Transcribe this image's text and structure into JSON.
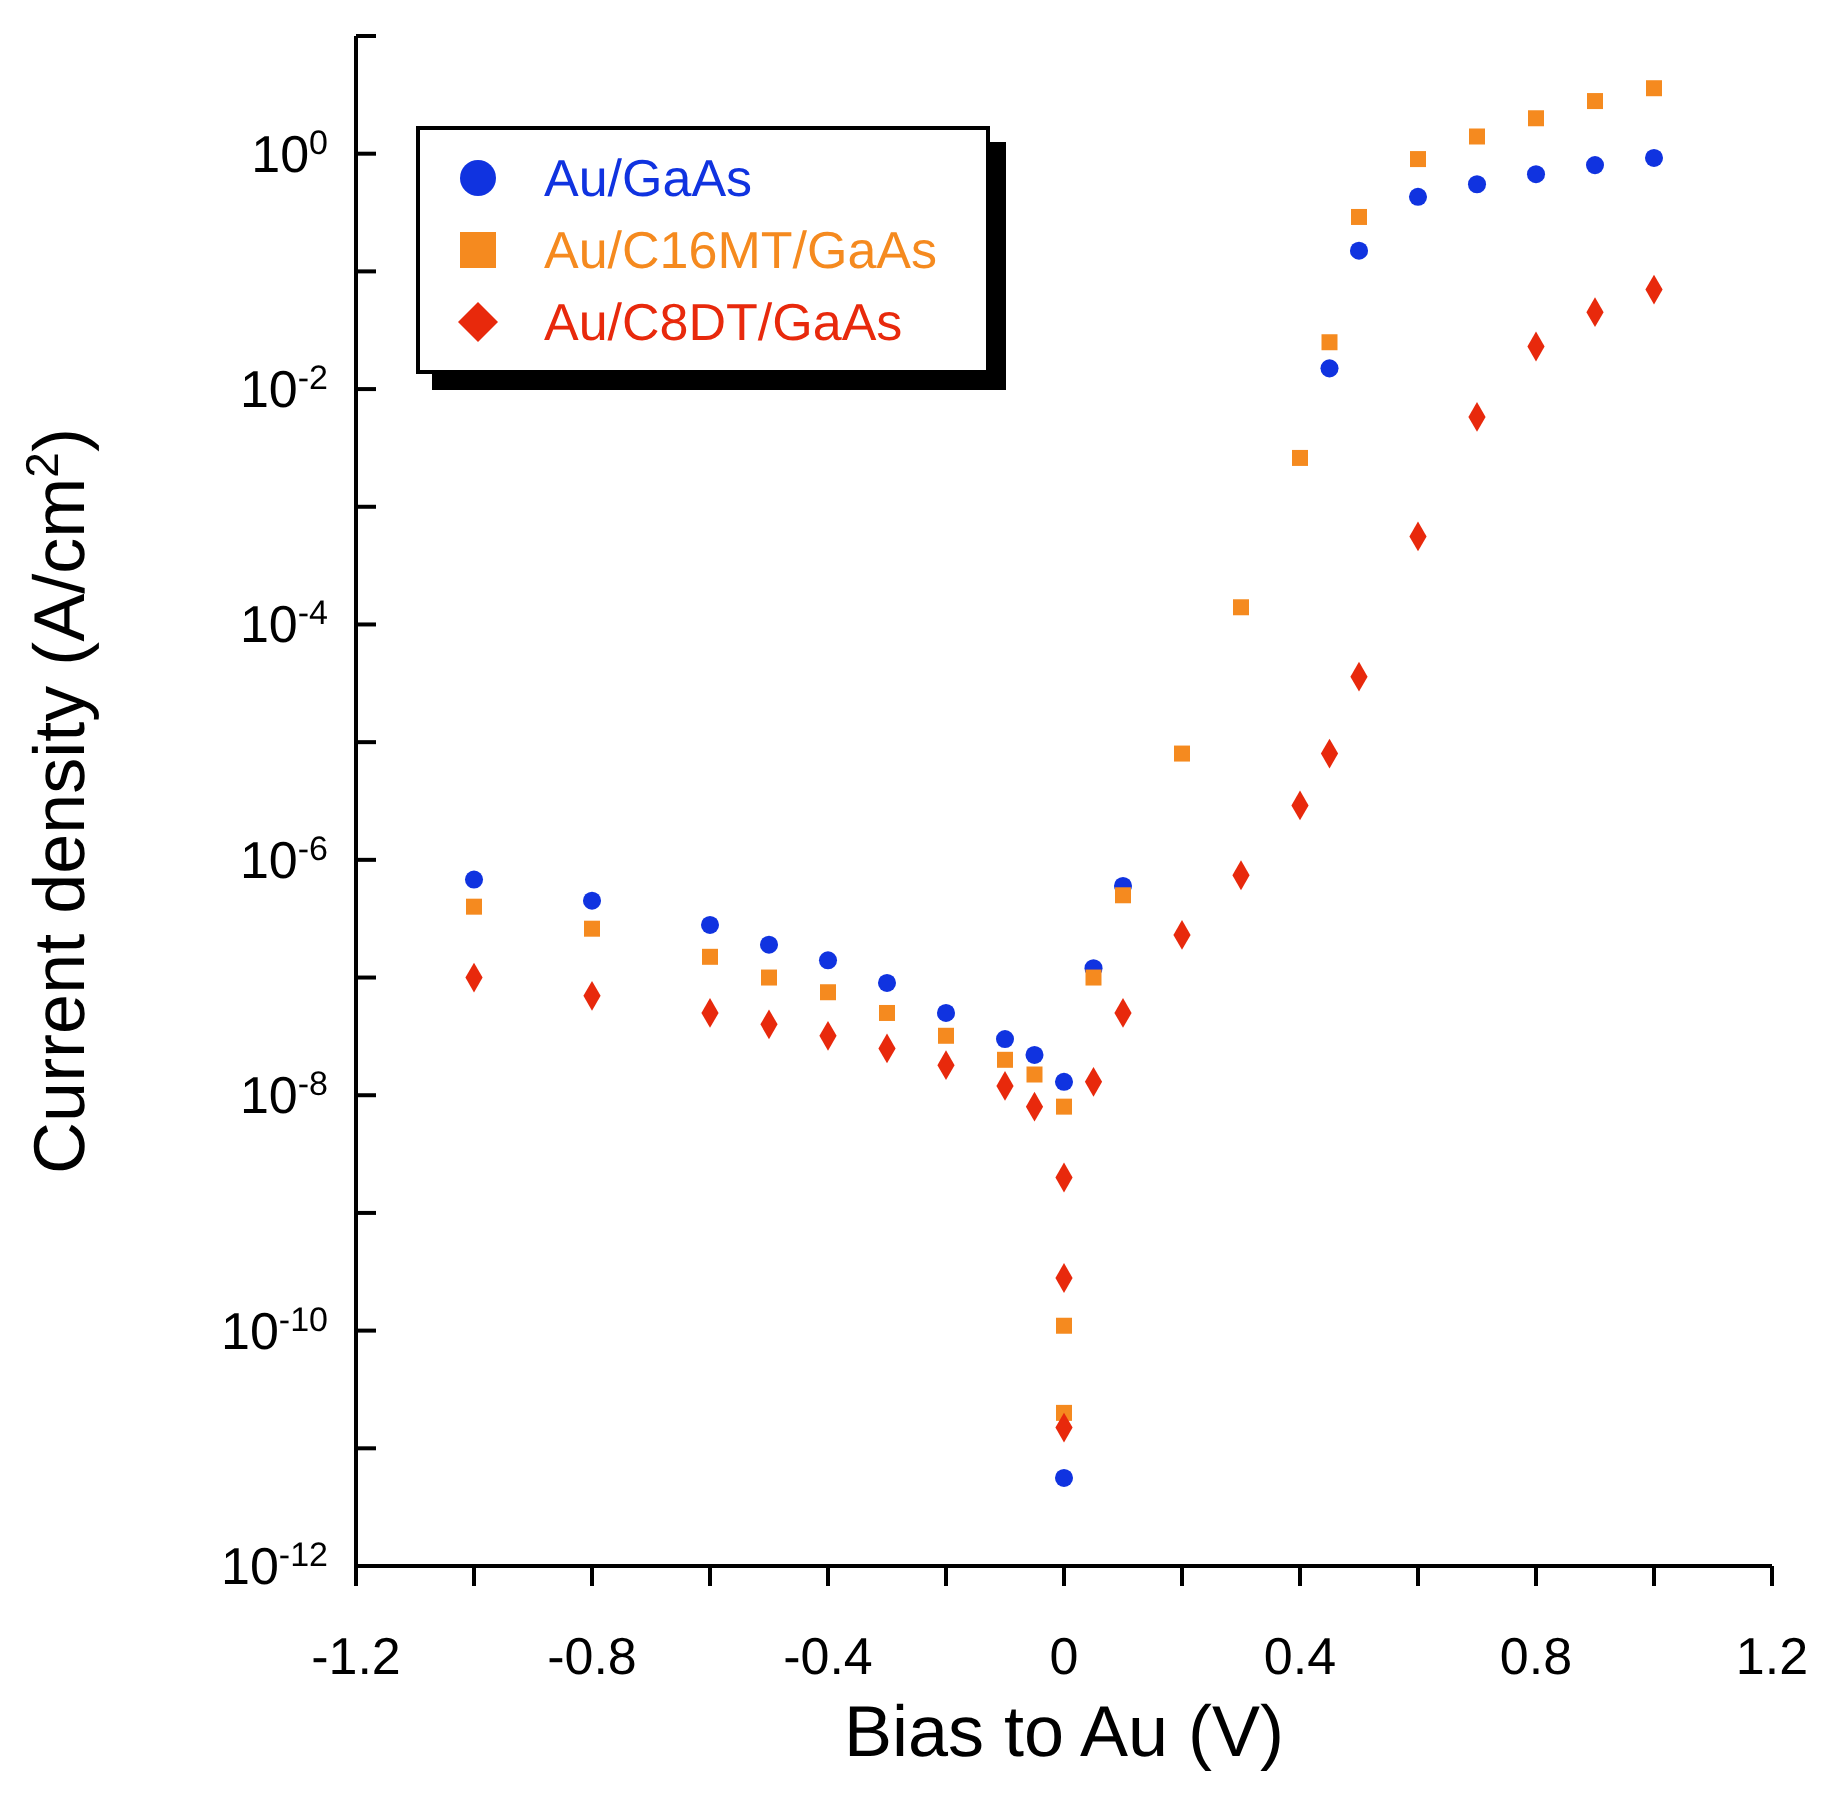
{
  "chart_data": {
    "type": "scatter",
    "xlabel": "Bias to Au (V)",
    "ylabel": "Current density (A/cm$^{2}$)",
    "log": "y",
    "legend": "top left",
    "grid": false,
    "xlim": [
      -1.2,
      1.2
    ],
    "xticks": [
      -1.2,
      {
        "value": -1.0,
        "label": null
      },
      -0.8,
      {
        "value": -0.6,
        "label": null
      },
      -0.4,
      {
        "value": -0.2,
        "label": null
      },
      0,
      {
        "value": 0.2,
        "label": null
      },
      0.4,
      {
        "value": 0.6,
        "label": null
      },
      0.8,
      {
        "value": 1.0,
        "label": null
      },
      1.2
    ],
    "ylim": [
      1e-12,
      10
    ],
    "yticks": [
      {
        "value": 1e-12,
        "label": "10$^{-12}$"
      },
      {
        "value": 1e-11,
        "label": null
      },
      {
        "value": 1e-10,
        "label": "10$^{-10}$"
      },
      {
        "value": 1e-09,
        "label": null
      },
      {
        "value": 1e-08,
        "label": "10$^{-8}$"
      },
      {
        "value": 1e-07,
        "label": null
      },
      {
        "value": 1e-06,
        "label": "10$^{-6}$"
      },
      {
        "value": 1e-05,
        "label": null
      },
      {
        "value": 0.0001,
        "label": "10$^{-4}$"
      },
      {
        "value": 0.001,
        "label": null
      },
      {
        "value": 0.01,
        "label": "10$^{-2}$"
      },
      {
        "value": 0.1,
        "label": null
      },
      {
        "value": 1,
        "label": "10$^{0}$"
      },
      {
        "value": 10,
        "label": null
      }
    ],
    "series": [
      {
        "name": "Au/GaAs",
        "color": "#1033e0",
        "marker": "circle",
        "x": [
          -1,
          -0.8,
          -0.6,
          -0.5,
          -0.4,
          -0.3,
          -0.2,
          -0.1,
          -0.05,
          0,
          0,
          0.05,
          0.1,
          0.45,
          0.5,
          0.6,
          0.7,
          0.8,
          0.9,
          1
        ],
        "values": [
          6.8e-07,
          4.5e-07,
          2.8e-07,
          1.9e-07,
          1.4e-07,
          9e-08,
          5e-08,
          3e-08,
          2.2e-08,
          1.3e-08,
          5.6e-12,
          1.2e-07,
          6e-07,
          0.015,
          0.15,
          0.43,
          0.55,
          0.67,
          0.8,
          0.92
        ]
      },
      {
        "name": "Au/C16MT/GaAs",
        "color": "#f58a1f",
        "marker": "square",
        "x": [
          -1,
          -0.8,
          -0.6,
          -0.5,
          -0.4,
          -0.3,
          -0.2,
          -0.1,
          -0.05,
          0,
          0,
          0,
          0.05,
          0.1,
          0.2,
          0.3,
          0.4,
          0.45,
          0.5,
          0.6,
          0.7,
          0.8,
          0.9,
          1
        ],
        "values": [
          4e-07,
          2.6e-07,
          1.5e-07,
          1e-07,
          7.5e-08,
          5e-08,
          3.2e-08,
          2e-08,
          1.5e-08,
          8e-09,
          1.1e-10,
          2e-11,
          1e-07,
          5e-07,
          8e-06,
          0.00014,
          0.0026,
          0.025,
          0.29,
          0.9,
          1.4,
          2,
          2.8,
          3.6
        ]
      },
      {
        "name": "Au/C8DT/GaAs",
        "color": "#e8290c",
        "marker": "diamond",
        "x": [
          -1,
          -0.8,
          -0.6,
          -0.5,
          -0.4,
          -0.3,
          -0.2,
          -0.1,
          -0.05,
          0,
          0,
          0,
          0.05,
          0.1,
          0.2,
          0.3,
          0.4,
          0.45,
          0.5,
          0.6,
          0.7,
          0.8,
          0.9,
          1
        ],
        "values": [
          1e-07,
          7e-08,
          5e-08,
          4e-08,
          3.2e-08,
          2.5e-08,
          1.8e-08,
          1.2e-08,
          8e-09,
          2e-09,
          2.8e-10,
          1.5e-11,
          1.3e-08,
          5e-08,
          2.3e-07,
          7.4e-07,
          2.9e-06,
          8e-06,
          3.6e-05,
          0.00056,
          0.0058,
          0.023,
          0.045,
          0.07
        ]
      }
    ]
  }
}
